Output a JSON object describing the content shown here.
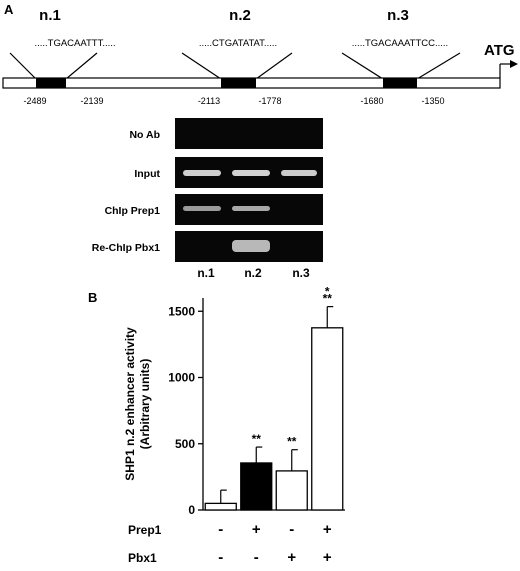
{
  "panel_a": {
    "label": "A",
    "regions": [
      {
        "name": "n.1",
        "sequence": ".....TGACAATTT.....",
        "start": "-2489",
        "end": "-2139"
      },
      {
        "name": "n.2",
        "sequence": ".....CTGATATAT.....",
        "start": "-2113",
        "end": "-1778"
      },
      {
        "name": "n.3",
        "sequence": ".....TGACAAATTCC.....",
        "start": "-1680",
        "end": "-1350"
      }
    ],
    "atg": "ATG",
    "gel_rows": [
      "No Ab",
      "Input",
      "ChIp Prep1",
      "Re-ChIp Pbx1"
    ],
    "gel_lanes": [
      "n.1",
      "n.2",
      "n.3"
    ]
  },
  "panel_b": {
    "label": "B",
    "factors": [
      {
        "name": "Prep1",
        "signs": [
          "-",
          "+",
          "-",
          "+"
        ]
      },
      {
        "name": "Pbx1",
        "signs": [
          "-",
          "-",
          "+",
          "+"
        ]
      }
    ]
  },
  "chart_data": {
    "type": "bar",
    "categories": [
      "- / -",
      "Prep1 + / Pbx1 -",
      "Prep1 - / Pbx1 +",
      "Prep1 + / Pbx1 +"
    ],
    "values": [
      50,
      355,
      295,
      1375
    ],
    "errors": [
      100,
      120,
      160,
      160
    ],
    "bar_colors": [
      "#ffffff",
      "#000000",
      "#ffffff",
      "#ffffff"
    ],
    "significance": [
      "",
      "**",
      "**",
      "**"
    ],
    "significance_extra": [
      "",
      "",
      "",
      "*"
    ],
    "ylabel_line1": "SHP1 n.2 enhancer activity",
    "ylabel_line2": "(Arbitrary units)",
    "ylim": [
      0,
      1600
    ],
    "yticks": [
      0,
      500,
      1000,
      1500
    ]
  }
}
